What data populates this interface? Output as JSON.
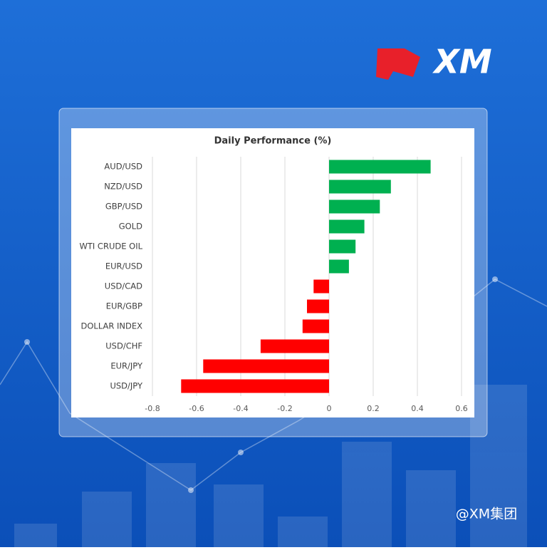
{
  "brand": {
    "logo": "XM",
    "watermark": "@XM集团"
  },
  "chart_data": {
    "type": "bar",
    "orientation": "horizontal",
    "title": "Daily Performance (%)",
    "categories": [
      "AUD/USD",
      "NZD/USD",
      "GBP/USD",
      "GOLD",
      "WTI CRUDE OIL",
      "EUR/USD",
      "USD/CAD",
      "EUR/GBP",
      "DOLLAR INDEX",
      "USD/CHF",
      "EUR/JPY",
      "USD/JPY"
    ],
    "values": [
      0.46,
      0.28,
      0.23,
      0.16,
      0.12,
      0.09,
      -0.07,
      -0.1,
      -0.12,
      -0.31,
      -0.57,
      -0.67
    ],
    "positive_color": "#00b050",
    "negative_color": "#ff0000",
    "xlim": [
      -0.8,
      0.6
    ],
    "xticks": [
      -0.8,
      -0.6,
      -0.4,
      -0.2,
      0,
      0.2,
      0.4,
      0.6
    ],
    "grid": true
  }
}
